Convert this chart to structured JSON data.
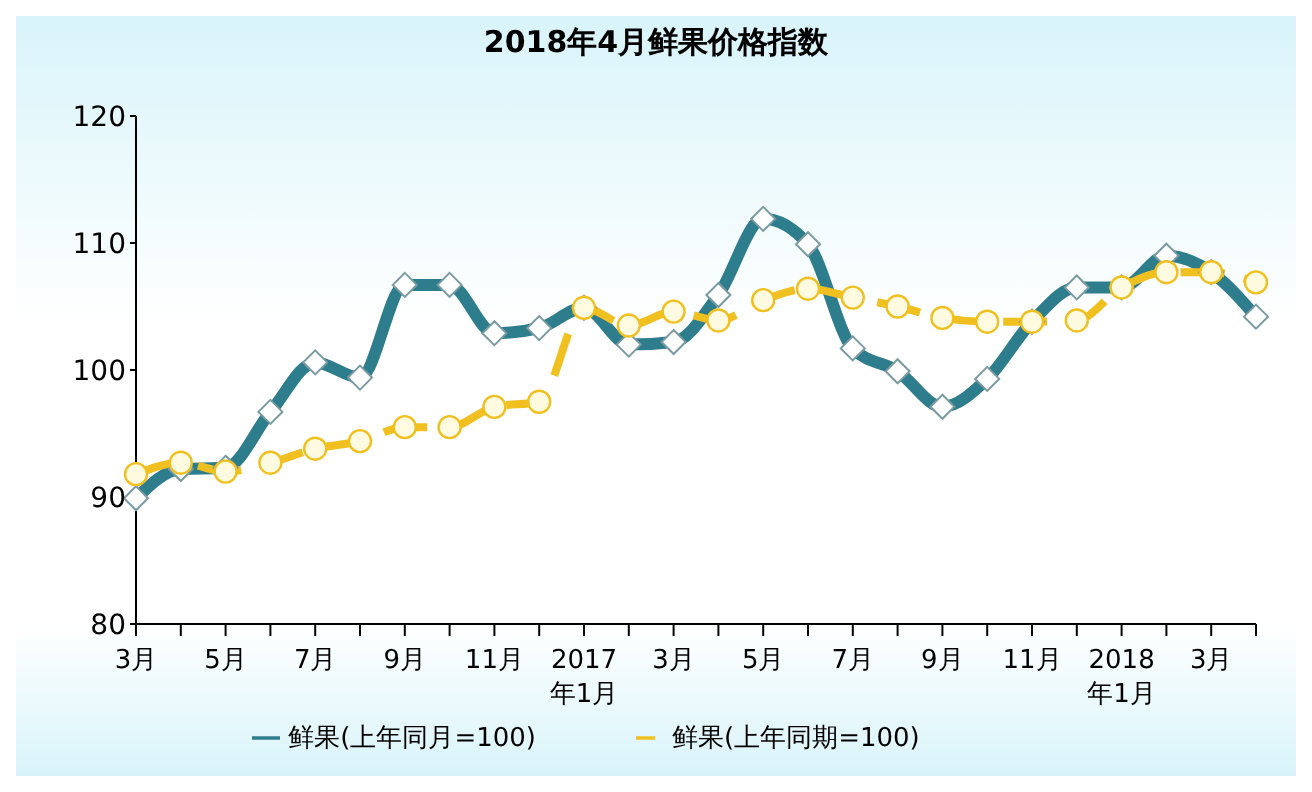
{
  "chart_data": {
    "type": "line",
    "title": "2018年4月鲜果价格指数",
    "categories": [
      "3月",
      null,
      "5月",
      null,
      "7月",
      null,
      "9月",
      null,
      "11月",
      null,
      "2017\n年1月",
      null,
      "3月",
      null,
      "5月",
      null,
      "7月",
      null,
      "9月",
      null,
      "11月",
      null,
      "2018\n年1月",
      null,
      "3月",
      null
    ],
    "series": [
      {
        "name": "鲜果(上年同月=100)",
        "color": "#2e7d8c",
        "marker": "diamond",
        "line_style": "solid",
        "values": [
          89.9,
          92.2,
          92.3,
          96.7,
          100.6,
          99.4,
          106.7,
          106.7,
          102.9,
          103.3,
          104.9,
          102.0,
          102.2,
          105.9,
          111.9,
          109.9,
          101.7,
          99.9,
          97.1,
          99.3,
          103.8,
          106.5,
          106.5,
          109.0,
          107.7,
          104.2
        ]
      },
      {
        "name": "鲜果(上年同期=100)",
        "color": "#f0c020",
        "marker": "circle",
        "line_style": "dashed",
        "values": [
          91.8,
          92.7,
          92.0,
          92.7,
          93.8,
          94.4,
          95.5,
          95.5,
          97.1,
          97.5,
          104.9,
          103.5,
          104.6,
          103.9,
          105.5,
          106.4,
          105.7,
          105.0,
          104.1,
          103.8,
          103.8,
          103.9,
          106.5,
          107.7,
          107.7,
          106.9
        ]
      }
    ],
    "ylim": [
      80,
      120
    ],
    "yticks": [
      80,
      90,
      100,
      110,
      120
    ],
    "legend": "bottom"
  }
}
